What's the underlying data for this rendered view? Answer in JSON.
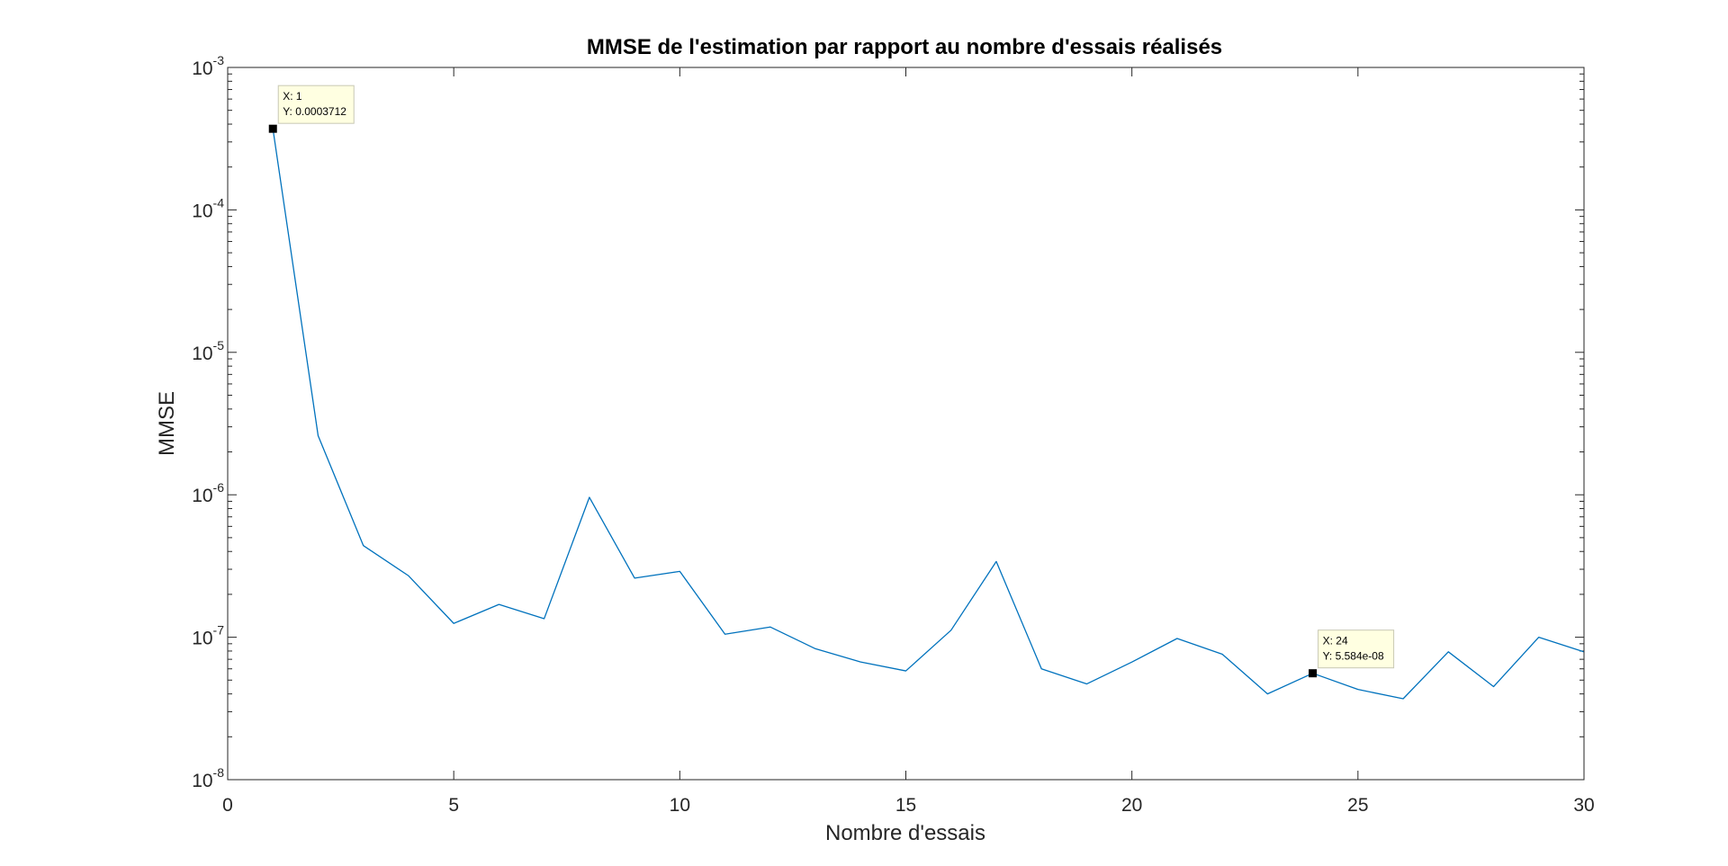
{
  "chart_data": {
    "type": "line",
    "title": "MMSE de l'estimation par rapport au nombre d'essais réalisés",
    "xlabel": "Nombre d'essais",
    "ylabel": "MMSE",
    "xlim": [
      0,
      30
    ],
    "ylim": [
      1e-08,
      0.001
    ],
    "yscale": "log",
    "grid": false,
    "box": true,
    "xticks": [
      0,
      5,
      10,
      15,
      20,
      25,
      30
    ],
    "xtick_labels": [
      "0",
      "5",
      "10",
      "15",
      "20",
      "25",
      "30"
    ],
    "yticks": [
      {
        "value": 1e-08,
        "base": "10",
        "exp": "-8"
      },
      {
        "value": 1e-07,
        "base": "10",
        "exp": "-7"
      },
      {
        "value": 1e-06,
        "base": "10",
        "exp": "-6"
      },
      {
        "value": 1e-05,
        "base": "10",
        "exp": "-5"
      },
      {
        "value": 0.0001,
        "base": "10",
        "exp": "-4"
      },
      {
        "value": 0.001,
        "base": "10",
        "exp": "-3"
      }
    ],
    "series": [
      {
        "color": "#0072BD",
        "x": [
          1,
          2,
          3,
          4,
          5,
          6,
          7,
          8,
          9,
          10,
          11,
          12,
          13,
          14,
          15,
          16,
          17,
          18,
          19,
          20,
          21,
          22,
          23,
          24,
          25,
          26,
          27,
          28,
          29,
          30
        ],
        "y": [
          0.0003712,
          2.6e-06,
          4.4e-07,
          2.7e-07,
          1.25e-07,
          1.7e-07,
          1.35e-07,
          9.6e-07,
          2.6e-07,
          2.9e-07,
          1.05e-07,
          1.18e-07,
          8.3e-08,
          6.7e-08,
          5.8e-08,
          1.12e-07,
          3.4e-07,
          6e-08,
          4.7e-08,
          6.7e-08,
          9.8e-08,
          7.6e-08,
          4e-08,
          5.584e-08,
          4.3e-08,
          3.7e-08,
          7.9e-08,
          4.5e-08,
          1e-07,
          7.9e-08
        ]
      }
    ],
    "datatips": [
      {
        "x": 1,
        "y": 0.0003712,
        "x_text": "X: 1",
        "y_text": "Y: 0.0003712",
        "placement": "right-above"
      },
      {
        "x": 24,
        "y": 5.584e-08,
        "x_text": "X: 24",
        "y_text": "Y: 5.584e-08",
        "placement": "right-above"
      }
    ]
  }
}
